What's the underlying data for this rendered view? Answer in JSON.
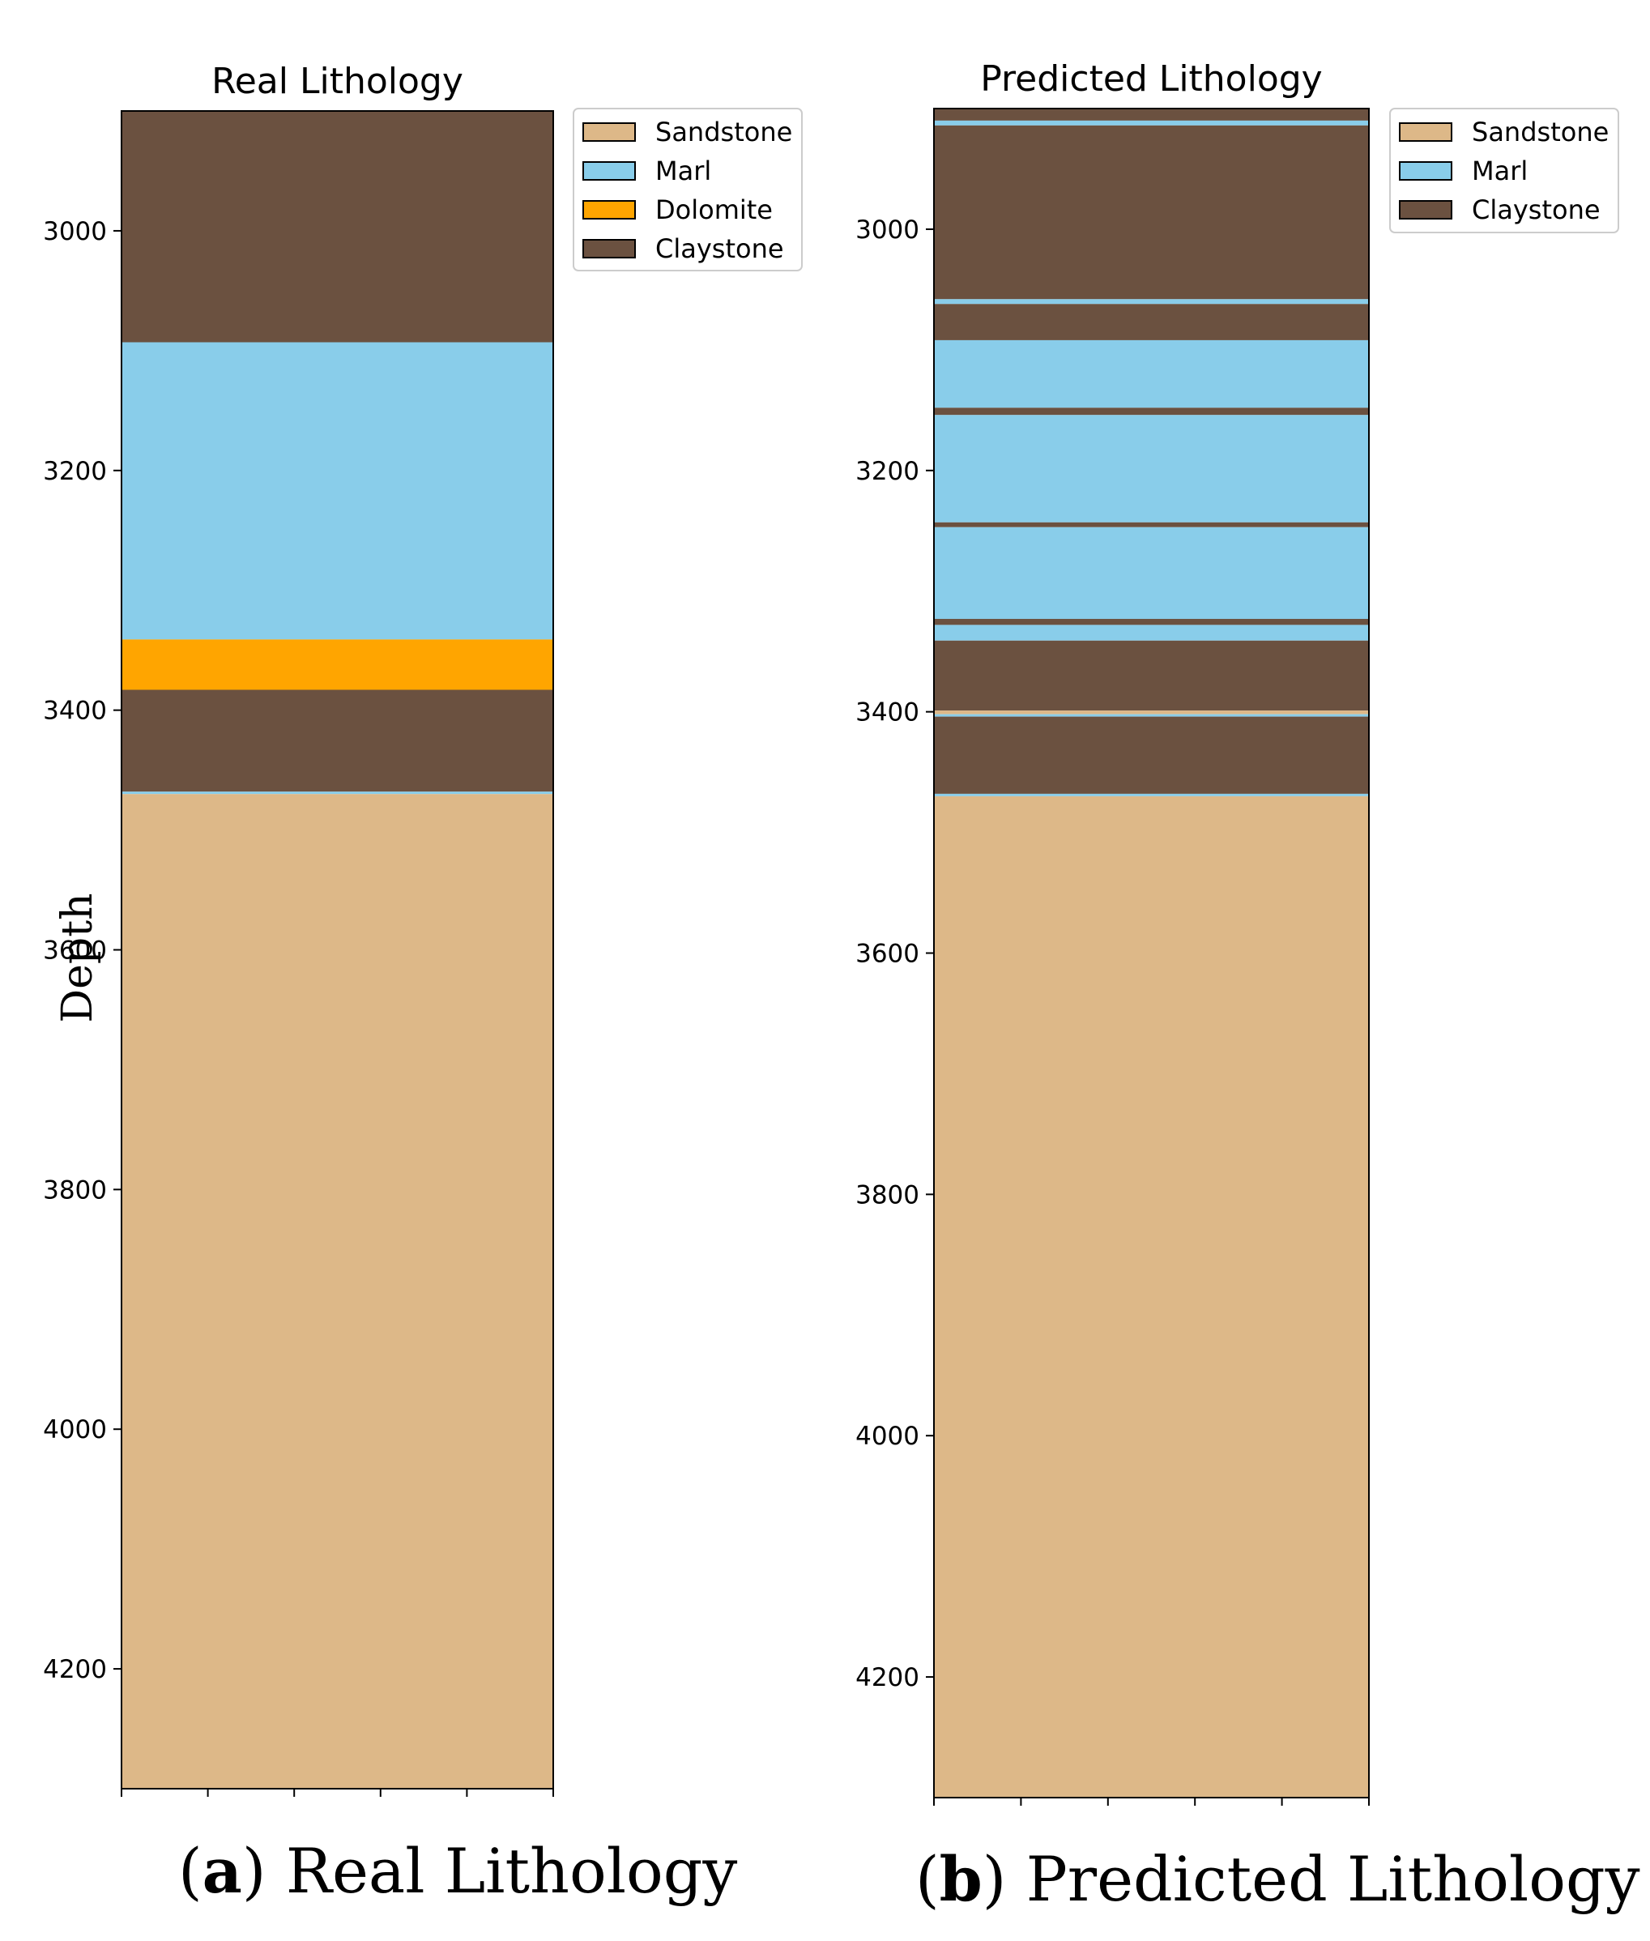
{
  "chart_data": [
    {
      "type": "bar",
      "subtype": "lithology-log",
      "title": "Real Lithology",
      "ylabel": "Depth",
      "ylim": [
        2900,
        4300
      ],
      "yticks": [
        3000,
        3200,
        3400,
        3600,
        3800,
        4000,
        4200
      ],
      "xticks_count": 6,
      "legend": [
        "Sandstone",
        "Marl",
        "Dolomite",
        "Claystone"
      ],
      "intervals": [
        {
          "lith": "Claystone",
          "top": 2900,
          "bottom": 3093
        },
        {
          "lith": "Marl",
          "top": 3093,
          "bottom": 3341
        },
        {
          "lith": "Dolomite",
          "top": 3341,
          "bottom": 3383
        },
        {
          "lith": "Claystone",
          "top": 3383,
          "bottom": 3468
        },
        {
          "lith": "Marl",
          "top": 3468,
          "bottom": 3470
        },
        {
          "lith": "Sandstone",
          "top": 3470,
          "bottom": 4300
        }
      ]
    },
    {
      "type": "bar",
      "subtype": "lithology-log",
      "title": "Predicted Lithology",
      "ylabel": "",
      "ylim": [
        2900,
        4300
      ],
      "yticks": [
        3000,
        3200,
        3400,
        3600,
        3800,
        4000,
        4200
      ],
      "xticks_count": 6,
      "legend": [
        "Sandstone",
        "Marl",
        "Claystone"
      ],
      "intervals": [
        {
          "lith": "Claystone",
          "top": 2900,
          "bottom": 2910
        },
        {
          "lith": "Marl",
          "top": 2910,
          "bottom": 2914
        },
        {
          "lith": "Claystone",
          "top": 2914,
          "bottom": 3058
        },
        {
          "lith": "Marl",
          "top": 3058,
          "bottom": 3062
        },
        {
          "lith": "Claystone",
          "top": 3062,
          "bottom": 3092
        },
        {
          "lith": "Marl",
          "top": 3092,
          "bottom": 3148
        },
        {
          "lith": "Claystone",
          "top": 3148,
          "bottom": 3154
        },
        {
          "lith": "Marl",
          "top": 3154,
          "bottom": 3243
        },
        {
          "lith": "Claystone",
          "top": 3243,
          "bottom": 3247
        },
        {
          "lith": "Marl",
          "top": 3247,
          "bottom": 3323
        },
        {
          "lith": "Claystone",
          "top": 3323,
          "bottom": 3328
        },
        {
          "lith": "Marl",
          "top": 3328,
          "bottom": 3341
        },
        {
          "lith": "Claystone",
          "top": 3341,
          "bottom": 3399
        },
        {
          "lith": "Sandstone",
          "top": 3399,
          "bottom": 3402
        },
        {
          "lith": "Marl",
          "top": 3402,
          "bottom": 3404
        },
        {
          "lith": "Claystone",
          "top": 3404,
          "bottom": 3468
        },
        {
          "lith": "Marl",
          "top": 3468,
          "bottom": 3470
        },
        {
          "lith": "Sandstone",
          "top": 3470,
          "bottom": 4300
        }
      ]
    }
  ],
  "colors": {
    "Sandstone": "#ddb888",
    "Marl": "#89cdea",
    "Dolomite": "#ffa500",
    "Claystone": "#6b5140"
  },
  "captions": {
    "a_letter": "a",
    "a_text": "Real Lithology",
    "b_letter": "b",
    "b_text": "Predicted Lithology"
  }
}
